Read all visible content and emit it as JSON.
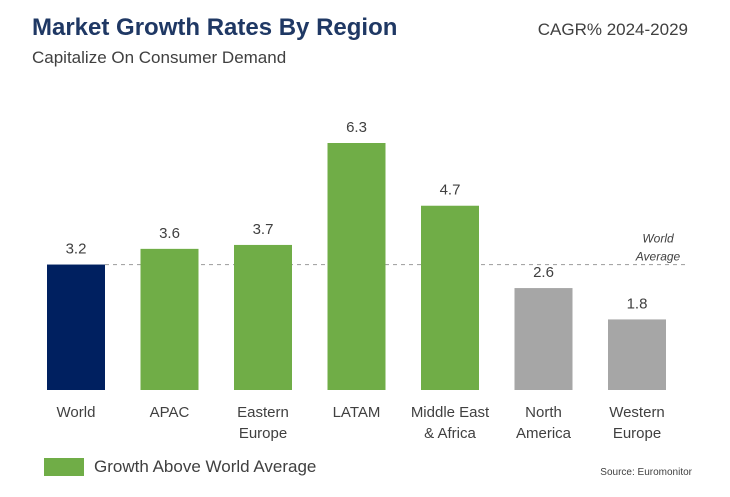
{
  "title": "Market Growth Rates By Region",
  "subtitle": "Capitalize On Consumer Demand",
  "period": "CAGR% 2024-2029",
  "legend": {
    "label": "Growth Above World Average"
  },
  "source": "Source: Euromonitor",
  "colors": {
    "world": "#002060",
    "above": "#70ad47",
    "below": "#a6a6a6",
    "refline": "#a6a6a6",
    "text": "#404040"
  },
  "chart_data": {
    "type": "bar",
    "title": "Market Growth Rates By Region",
    "ylabel": "CAGR% 2024-2029",
    "ylim": [
      0,
      6.3
    ],
    "categories": [
      [
        "World"
      ],
      [
        "APAC"
      ],
      [
        "Eastern",
        "Europe"
      ],
      [
        "LATAM"
      ],
      [
        "Middle East",
        "& Africa"
      ],
      [
        "North",
        "America"
      ],
      [
        "Western",
        "Europe"
      ]
    ],
    "values": [
      3.2,
      3.6,
      3.7,
      6.3,
      4.7,
      2.6,
      1.8
    ],
    "value_labels": [
      "3.2",
      "3.6",
      "3.7",
      "6.3",
      "4.7",
      "2.6",
      "1.8"
    ],
    "bar_groups": [
      "world",
      "above",
      "above",
      "above",
      "above",
      "below",
      "below"
    ],
    "reference_line": {
      "value": 3.2,
      "label": [
        "World",
        "Average"
      ]
    },
    "grid": false,
    "legend_position": "bottom-left"
  }
}
